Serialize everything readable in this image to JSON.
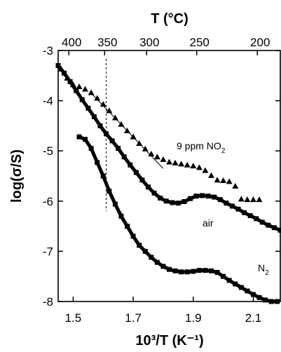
{
  "chart_data": {
    "type": "scatter",
    "title": "",
    "xlabel": "10³/T (K⁻¹)",
    "ylabel": "log(σ/S)",
    "top_axis_label": "T (°C)",
    "xlim": [
      1.45,
      2.19
    ],
    "ylim": [
      -8,
      -3
    ],
    "x_ticks": [
      "1.5",
      "1.7",
      "1.9",
      "2.1"
    ],
    "y_ticks": [
      "-3",
      "-4",
      "-5",
      "-6",
      "-7",
      "-8"
    ],
    "top_ticks": [
      "400",
      "350",
      "300",
      "250",
      "200"
    ],
    "dashed_line_x": 1.61,
    "grid": false,
    "series": [
      {
        "name": "9 ppm NO₂",
        "label_main": "9 ppm NO",
        "label_sub": "2",
        "marker": "triangle",
        "x": [
          1.46,
          1.48,
          1.5,
          1.52,
          1.54,
          1.56,
          1.58,
          1.6,
          1.62,
          1.64,
          1.66,
          1.68,
          1.7,
          1.72,
          1.74,
          1.76,
          1.78,
          1.8,
          1.82,
          1.84,
          1.86,
          1.88,
          1.9,
          1.92,
          1.94,
          1.96,
          1.98,
          2.0,
          2.02,
          2.04,
          2.06,
          2.08,
          2.1,
          2.12
        ],
        "y": [
          -3.37,
          -3.55,
          -3.68,
          -3.72,
          -3.77,
          -3.84,
          -3.95,
          -4.07,
          -4.2,
          -4.34,
          -4.47,
          -4.6,
          -4.72,
          -4.85,
          -4.96,
          -5.06,
          -5.12,
          -5.17,
          -5.22,
          -5.24,
          -5.26,
          -5.28,
          -5.3,
          -5.33,
          -5.39,
          -5.49,
          -5.58,
          -5.59,
          -5.61,
          -5.7,
          -5.96,
          -5.97,
          -5.97,
          -5.97
        ]
      },
      {
        "name": "air",
        "label_main": "air",
        "marker": "square",
        "x": [
          1.45,
          1.47,
          1.49,
          1.51,
          1.53,
          1.55,
          1.57,
          1.59,
          1.61,
          1.63,
          1.65,
          1.67,
          1.69,
          1.71,
          1.73,
          1.75,
          1.77,
          1.79,
          1.81,
          1.83,
          1.85,
          1.87,
          1.89,
          1.91,
          1.93,
          1.95,
          1.97,
          1.99,
          2.01,
          2.03,
          2.05,
          2.07,
          2.09,
          2.11,
          2.13,
          2.15,
          2.17,
          2.19
        ],
        "y": [
          -3.3,
          -3.45,
          -3.62,
          -3.8,
          -3.98,
          -4.15,
          -4.32,
          -4.5,
          -4.66,
          -4.8,
          -4.95,
          -5.12,
          -5.28,
          -5.43,
          -5.58,
          -5.72,
          -5.84,
          -5.94,
          -6.0,
          -6.03,
          -6.04,
          -6.01,
          -5.95,
          -5.9,
          -5.89,
          -5.9,
          -5.92,
          -5.97,
          -6.04,
          -6.1,
          -6.16,
          -6.23,
          -6.29,
          -6.35,
          -6.42,
          -6.48,
          -6.53,
          -6.58
        ]
      },
      {
        "name": "N₂",
        "label_main": "N",
        "label_sub": "2",
        "marker": "square",
        "x": [
          1.52,
          1.54,
          1.56,
          1.58,
          1.6,
          1.62,
          1.64,
          1.66,
          1.68,
          1.7,
          1.72,
          1.74,
          1.76,
          1.78,
          1.8,
          1.82,
          1.84,
          1.86,
          1.88,
          1.9,
          1.92,
          1.94,
          1.96,
          1.98,
          2.0,
          2.02,
          2.04,
          2.06,
          2.08,
          2.1,
          2.12,
          2.14,
          2.16,
          2.18
        ],
        "y": [
          -4.72,
          -4.77,
          -4.95,
          -5.23,
          -5.5,
          -5.8,
          -6.06,
          -6.3,
          -6.5,
          -6.7,
          -6.88,
          -7.0,
          -7.12,
          -7.22,
          -7.3,
          -7.36,
          -7.39,
          -7.41,
          -7.41,
          -7.4,
          -7.38,
          -7.38,
          -7.39,
          -7.42,
          -7.5,
          -7.58,
          -7.65,
          -7.72,
          -7.79,
          -7.86,
          -7.92,
          -7.97,
          -8.0,
          -8.0
        ]
      }
    ]
  }
}
